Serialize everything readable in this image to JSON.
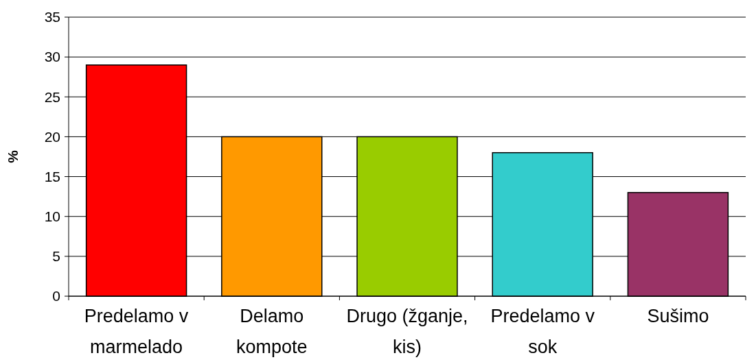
{
  "chart_data": {
    "type": "bar",
    "ylabel": "%",
    "categories": [
      "Predelamo v marmelado",
      "Delamo kompote",
      "Drugo (žganje, kis)",
      "Predelamo v sok",
      "Sušimo"
    ],
    "values": [
      29,
      20,
      20,
      18,
      13
    ],
    "colors": [
      "#ff0000",
      "#ff9900",
      "#99cc00",
      "#33cccc",
      "#993366"
    ],
    "ylim": [
      0,
      35
    ],
    "yticks": [
      0,
      5,
      10,
      15,
      20,
      25,
      30,
      35
    ],
    "grid": "y"
  }
}
